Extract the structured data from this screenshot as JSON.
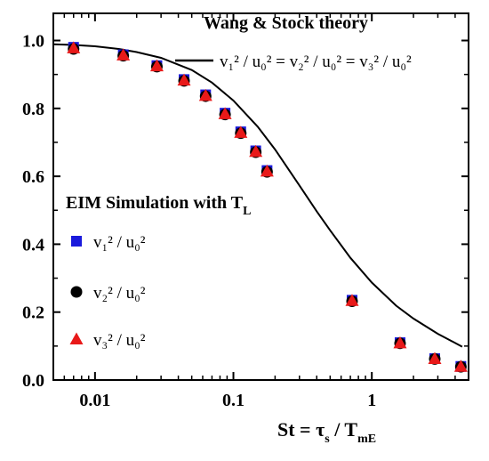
{
  "chart_data": {
    "type": "scatter",
    "x_scale": "log",
    "xlim": [
      0.005,
      5
    ],
    "ylim": [
      0.0,
      1.08
    ],
    "x_ticks": [
      "0.01",
      "0.1",
      "1"
    ],
    "y_ticks": [
      "0.0",
      "0.2",
      "0.4",
      "0.6",
      "0.8",
      "1.0"
    ],
    "xlabel": {
      "main": "St = τ",
      "sub1": "s",
      "mid": " / T",
      "sub2": "mE"
    },
    "ylabel": "",
    "theory": {
      "title": "Wang & Stock theory",
      "legend": "v₁² / u₀² = v₂² / u₀² = v₃² / u₀²",
      "color": "#000000",
      "x": [
        0.005,
        0.007,
        0.01,
        0.015,
        0.02,
        0.03,
        0.05,
        0.07,
        0.1,
        0.15,
        0.2,
        0.3,
        0.4,
        0.5,
        0.7,
        1.0,
        1.5,
        2.0,
        3.0,
        4.5
      ],
      "y": [
        0.989,
        0.987,
        0.983,
        0.975,
        0.966,
        0.949,
        0.913,
        0.876,
        0.823,
        0.746,
        0.679,
        0.573,
        0.497,
        0.441,
        0.36,
        0.287,
        0.219,
        0.181,
        0.136,
        0.098
      ]
    },
    "sim_title": {
      "main": "EIM Simulation with T",
      "sub": "L"
    },
    "series": [
      {
        "name": "v₁² / u₀²",
        "marker": "square",
        "color": "#1a1adc",
        "x": [
          0.007,
          0.016,
          0.028,
          0.044,
          0.063,
          0.087,
          0.113,
          0.145,
          0.175,
          0.72,
          1.6,
          2.85,
          4.4
        ],
        "y": [
          0.98,
          0.958,
          0.926,
          0.885,
          0.84,
          0.786,
          0.731,
          0.675,
          0.617,
          0.235,
          0.11,
          0.063,
          0.04
        ]
      },
      {
        "name": "v₂² / u₀²",
        "marker": "circle",
        "color": "#000000",
        "x": [
          0.007,
          0.016,
          0.028,
          0.044,
          0.063,
          0.087,
          0.113,
          0.145,
          0.175,
          0.72,
          1.6,
          2.85,
          4.4
        ],
        "y": [
          0.975,
          0.955,
          0.923,
          0.881,
          0.836,
          0.782,
          0.727,
          0.671,
          0.613,
          0.232,
          0.108,
          0.062,
          0.039
        ]
      },
      {
        "name": "v₃² / u₀²",
        "marker": "triangle",
        "color": "#e81919",
        "x": [
          0.007,
          0.016,
          0.028,
          0.044,
          0.063,
          0.087,
          0.113,
          0.145,
          0.175,
          0.72,
          1.6,
          2.85,
          4.4
        ],
        "y": [
          0.978,
          0.957,
          0.925,
          0.883,
          0.838,
          0.784,
          0.729,
          0.673,
          0.615,
          0.234,
          0.109,
          0.063,
          0.04
        ]
      }
    ],
    "grid": false
  }
}
